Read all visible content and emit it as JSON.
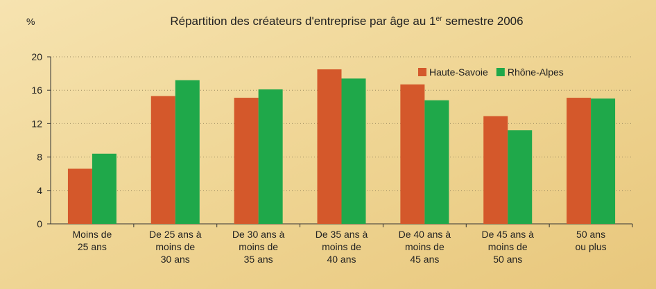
{
  "chart_data": {
    "type": "bar",
    "title": [
      "Répartition des créateurs d'entreprise par âge au 1",
      "er",
      " semestre 2006"
    ],
    "y_label": "%",
    "categories": [
      [
        "Moins de",
        "25 ans"
      ],
      [
        "De 25 ans à",
        "moins de",
        "30 ans"
      ],
      [
        "De 30 ans à",
        "moins de",
        "35 ans"
      ],
      [
        "De 35 ans à",
        "moins de",
        "40 ans"
      ],
      [
        "De 40 ans à",
        "moins de",
        "45 ans"
      ],
      [
        "De 45 ans à",
        "moins de",
        "50 ans"
      ],
      [
        "50 ans",
        "ou plus"
      ]
    ],
    "series": [
      {
        "name": "Haute-Savoie",
        "color": "#d4582b",
        "values": [
          6.6,
          15.3,
          15.1,
          18.5,
          16.7,
          12.9,
          15.1
        ]
      },
      {
        "name": "Rhône-Alpes",
        "color": "#1fa84a",
        "values": [
          8.4,
          17.2,
          16.1,
          17.4,
          14.8,
          11.2,
          15.0
        ]
      }
    ],
    "ylim": [
      0,
      20
    ],
    "yticks": [
      0,
      4,
      8,
      12,
      16,
      20
    ],
    "grid": true
  }
}
